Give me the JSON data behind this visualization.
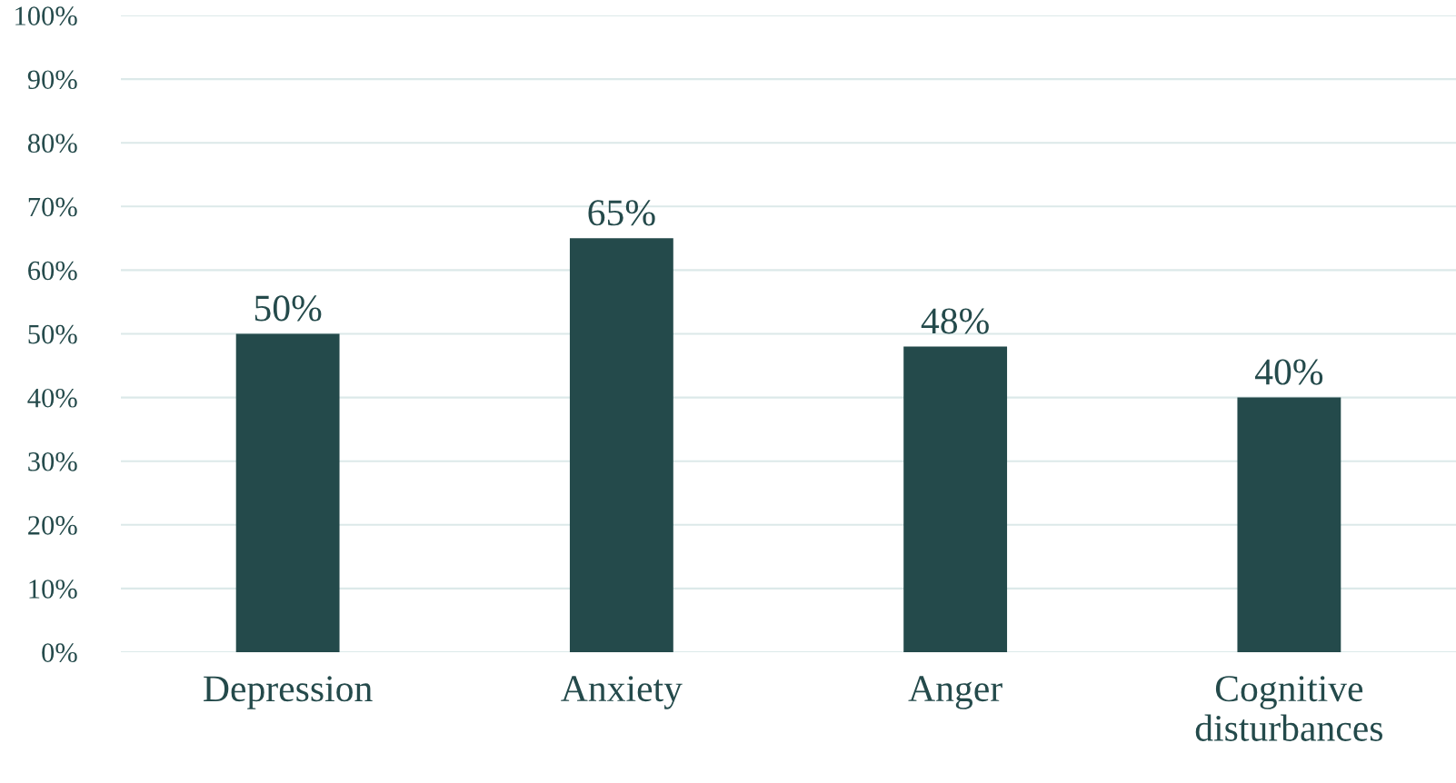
{
  "chart_data": {
    "type": "bar",
    "categories": [
      "Depression",
      "Anxiety",
      "Anger",
      "Cognitive\ndisturbances"
    ],
    "values": [
      50,
      65,
      48,
      40
    ],
    "color": "#244a4b",
    "value_labels": [
      "50%",
      "65%",
      "48%",
      "40%"
    ],
    "ylim": [
      0,
      100
    ],
    "yticks": [
      {
        "value": 0,
        "label": "0%"
      },
      {
        "value": 10,
        "label": "10%"
      },
      {
        "value": 20,
        "label": "20%"
      },
      {
        "value": 30,
        "label": "30%"
      },
      {
        "value": 40,
        "label": "40%"
      },
      {
        "value": 50,
        "label": "50%"
      },
      {
        "value": 60,
        "label": "60%"
      },
      {
        "value": 70,
        "label": "70%"
      },
      {
        "value": 80,
        "label": "80%"
      },
      {
        "value": 90,
        "label": "90%"
      },
      {
        "value": 100,
        "label": "100%"
      }
    ],
    "grid": "y"
  }
}
